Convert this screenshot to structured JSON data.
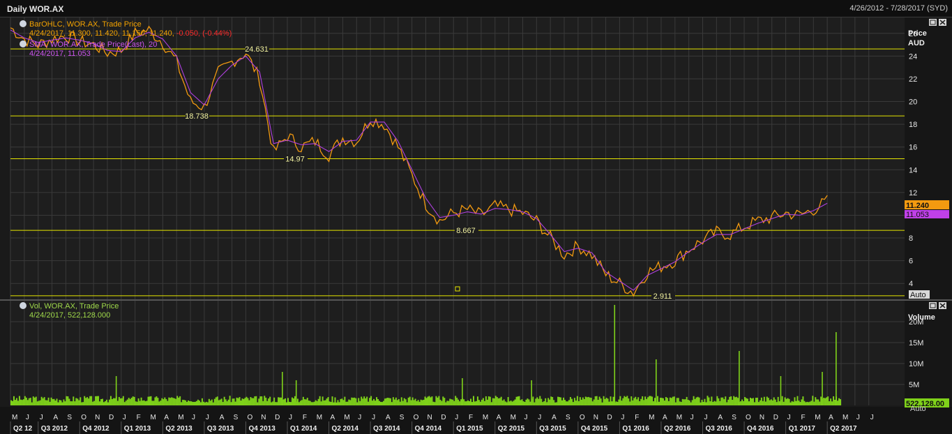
{
  "window": {
    "title": "Daily WOR.AX",
    "date_range": "4/26/2012 - 7/28/2017 (SYD)"
  },
  "colors": {
    "background": "#1a1a1a",
    "price": "#f39a10",
    "sma": "#b040e0",
    "level": "#e6e600",
    "volume": "#7fd21a",
    "grid": "#3a3a3a"
  },
  "price_panel": {
    "legend": {
      "bar_series": "BarOHLC, WOR.AX, Trade Price",
      "bar_values": "4/24/2017, 11.300, 11.420, 11.150, 11.240,",
      "bar_change": "-0.050, (-0.44%)",
      "sma_series": "SMA, WOR.AX, Trade Price(Last), 20",
      "sma_values": "4/24/2017, 11.053"
    },
    "axis_title_1": "Price",
    "axis_title_2": "AUD",
    "last_price": "11.240",
    "last_sma": "11.053",
    "auto_label": "Auto"
  },
  "volume_panel": {
    "legend": {
      "series": "Vol, WOR.AX, Trade Price",
      "values": "4/24/2017, 522,128.000"
    },
    "axis_title": "Volume",
    "last_volume": "522,128.00",
    "auto_label": "Auto"
  },
  "chart_data": [
    {
      "type": "line",
      "title": "",
      "ylabel": "Price AUD",
      "ylim": [
        2.6,
        27.4
      ],
      "yticks": [
        4,
        6,
        8,
        10,
        12,
        14,
        16,
        18,
        20,
        22,
        24,
        26
      ],
      "x_months": [
        "M",
        "J",
        "J",
        "A",
        "S",
        "O",
        "N",
        "D",
        "J",
        "F",
        "M",
        "A",
        "M",
        "J",
        "J",
        "A",
        "S",
        "O",
        "N",
        "D",
        "J",
        "F",
        "M",
        "A",
        "M",
        "J",
        "J",
        "A",
        "S",
        "O",
        "N",
        "D",
        "J",
        "F",
        "M",
        "A",
        "M",
        "J",
        "J",
        "A",
        "S",
        "O",
        "N",
        "D",
        "J",
        "F",
        "M",
        "A",
        "M",
        "J",
        "J",
        "A",
        "S",
        "O",
        "N",
        "D",
        "J",
        "F",
        "M",
        "A",
        "M",
        "J",
        "J"
      ],
      "x_quarters": [
        "Q2 12",
        "Q3 2012",
        "Q4 2012",
        "Q1 2013",
        "Q2 2013",
        "Q3 2013",
        "Q4 2013",
        "Q1 2014",
        "Q2 2014",
        "Q3 2014",
        "Q4 2014",
        "Q1 2015",
        "Q2 2015",
        "Q3 2015",
        "Q4 2015",
        "Q1 2016",
        "Q2 2016",
        "Q3 2016",
        "Q4 2016",
        "Q1 2017",
        "Q2 2017"
      ],
      "levels": [
        24.631,
        18.738,
        14.97,
        8.667,
        2.911
      ],
      "series": [
        {
          "name": "BarOHLC, WOR.AX, Trade Price",
          "x": [
            "2012-05",
            "2012-06",
            "2012-07",
            "2012-08",
            "2012-09",
            "2012-10",
            "2012-11",
            "2012-12",
            "2013-01",
            "2013-02",
            "2013-03",
            "2013-04",
            "2013-05",
            "2013-06",
            "2013-07",
            "2013-08",
            "2013-09",
            "2013-10",
            "2013-11",
            "2013-12",
            "2014-01",
            "2014-02",
            "2014-03",
            "2014-04",
            "2014-05",
            "2014-06",
            "2014-07",
            "2014-08",
            "2014-09",
            "2014-10",
            "2014-11",
            "2014-12",
            "2015-01",
            "2015-02",
            "2015-03",
            "2015-04",
            "2015-05",
            "2015-06",
            "2015-07",
            "2015-08",
            "2015-09",
            "2015-10",
            "2015-11",
            "2015-12",
            "2016-01",
            "2016-02",
            "2016-03",
            "2016-04",
            "2016-05",
            "2016-06",
            "2016-07",
            "2016-08",
            "2016-09",
            "2016-10",
            "2016-11",
            "2016-12",
            "2017-01",
            "2017-02",
            "2017-03",
            "2017-04"
          ],
          "values": [
            26.5,
            25.5,
            25.0,
            25.5,
            25.8,
            25.3,
            25.0,
            24.3,
            24.5,
            26.0,
            26.3,
            25.2,
            23.5,
            20.0,
            19.5,
            22.5,
            23.5,
            24.3,
            22.0,
            15.5,
            17.0,
            16.0,
            16.5,
            15.3,
            16.8,
            16.5,
            18.5,
            18.0,
            16.0,
            13.5,
            11.0,
            9.5,
            10.2,
            10.5,
            10.0,
            10.8,
            10.5,
            10.2,
            9.5,
            8.0,
            6.5,
            7.3,
            6.5,
            4.8,
            4.0,
            3.2,
            5.0,
            5.5,
            6.0,
            7.0,
            7.8,
            8.5,
            8.3,
            9.0,
            9.5,
            9.8,
            10.2,
            10.0,
            10.5,
            11.24
          ]
        },
        {
          "name": "SMA, WOR.AX, Trade Price(Last), 20",
          "x": [
            "2012-05",
            "2012-06",
            "2012-07",
            "2012-08",
            "2012-09",
            "2012-10",
            "2012-11",
            "2012-12",
            "2013-01",
            "2013-02",
            "2013-03",
            "2013-04",
            "2013-05",
            "2013-06",
            "2013-07",
            "2013-08",
            "2013-09",
            "2013-10",
            "2013-11",
            "2013-12",
            "2014-01",
            "2014-02",
            "2014-03",
            "2014-04",
            "2014-05",
            "2014-06",
            "2014-07",
            "2014-08",
            "2014-09",
            "2014-10",
            "2014-11",
            "2014-12",
            "2015-01",
            "2015-02",
            "2015-03",
            "2015-04",
            "2015-05",
            "2015-06",
            "2015-07",
            "2015-08",
            "2015-09",
            "2015-10",
            "2015-11",
            "2015-12",
            "2016-01",
            "2016-02",
            "2016-03",
            "2016-04",
            "2016-05",
            "2016-06",
            "2016-07",
            "2016-08",
            "2016-09",
            "2016-10",
            "2016-11",
            "2016-12",
            "2017-01",
            "2017-02",
            "2017-03",
            "2017-04"
          ],
          "values": [
            26.3,
            25.6,
            25.2,
            25.4,
            25.6,
            25.4,
            25.1,
            24.5,
            24.4,
            25.6,
            26.1,
            25.5,
            24.0,
            20.8,
            19.7,
            22.0,
            23.2,
            24.0,
            22.6,
            16.3,
            16.6,
            16.2,
            16.3,
            15.6,
            16.5,
            16.6,
            18.2,
            18.2,
            16.5,
            14.0,
            11.5,
            9.8,
            10.0,
            10.3,
            10.1,
            10.6,
            10.5,
            10.3,
            9.7,
            8.3,
            6.8,
            7.1,
            6.7,
            5.0,
            4.2,
            3.4,
            4.7,
            5.3,
            5.9,
            6.8,
            7.6,
            8.3,
            8.3,
            8.8,
            9.3,
            9.7,
            10.1,
            10.0,
            10.4,
            11.053
          ]
        }
      ]
    },
    {
      "type": "bar",
      "title": "",
      "ylabel": "Volume",
      "ylim": [
        0,
        25000000
      ],
      "yticks": [
        "5M",
        "10M",
        "15M",
        "20M"
      ],
      "series": [
        {
          "name": "Vol, WOR.AX, Trade Price",
          "spikes": [
            {
              "x": "2012-12",
              "value": 7000000
            },
            {
              "x": "2013-12",
              "value": 8000000
            },
            {
              "x": "2014-01",
              "value": 6000000
            },
            {
              "x": "2015-01",
              "value": 6500000
            },
            {
              "x": "2015-06",
              "value": 6000000
            },
            {
              "x": "2015-12",
              "value": 24000000
            },
            {
              "x": "2016-03",
              "value": 11000000
            },
            {
              "x": "2016-09",
              "value": 13000000
            },
            {
              "x": "2016-12",
              "value": 7000000
            },
            {
              "x": "2017-03",
              "value": 8000000
            },
            {
              "x": "2017-04",
              "value": 17500000
            }
          ],
          "last": 522128
        }
      ]
    }
  ]
}
